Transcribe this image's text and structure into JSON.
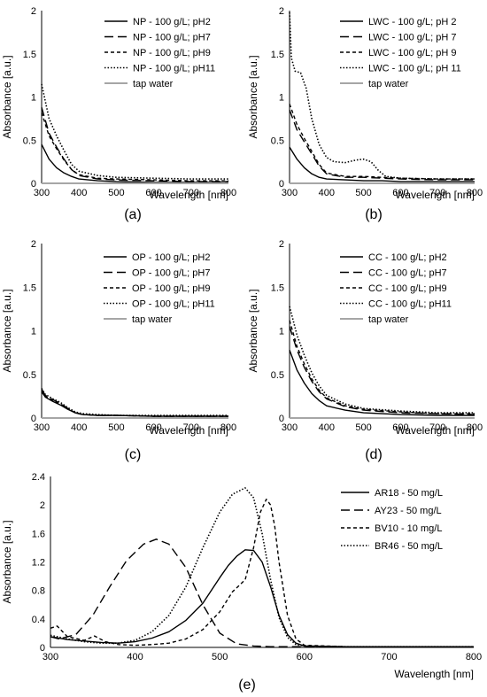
{
  "chart_data": [
    {
      "type": "line",
      "panel_label": "(a)",
      "xlabel": "Wavelength [nm]",
      "ylabel": "Absorbance [a.u.]",
      "xlim": [
        300,
        800
      ],
      "ylim": [
        0,
        2
      ],
      "xticks": [
        "300",
        "400",
        "500",
        "600",
        "700",
        "800"
      ],
      "yticks": [
        "0",
        "0.5",
        "1",
        "1.5",
        "2"
      ],
      "legend_position": "top-right",
      "series": [
        {
          "name": "NP - 100 g/L; pH2",
          "style": "solid",
          "color": "#000000",
          "x": [
            300,
            320,
            340,
            360,
            380,
            400,
            450,
            500,
            600,
            700,
            800
          ],
          "y": [
            0.45,
            0.28,
            0.18,
            0.12,
            0.08,
            0.05,
            0.03,
            0.02,
            0.01,
            0.01,
            0.01
          ]
        },
        {
          "name": "NP - 100 g/L; pH7",
          "style": "longdash",
          "color": "#000000",
          "x": [
            300,
            320,
            340,
            360,
            380,
            400,
            450,
            500,
            600,
            700,
            800
          ],
          "y": [
            0.88,
            0.58,
            0.42,
            0.28,
            0.16,
            0.09,
            0.05,
            0.04,
            0.03,
            0.02,
            0.02
          ]
        },
        {
          "name": "NP - 100 g/L; pH9",
          "style": "dash",
          "color": "#000000",
          "x": [
            300,
            320,
            340,
            360,
            380,
            400,
            450,
            500,
            600,
            700,
            800
          ],
          "y": [
            0.82,
            0.55,
            0.4,
            0.27,
            0.16,
            0.1,
            0.06,
            0.05,
            0.04,
            0.03,
            0.03
          ]
        },
        {
          "name": "NP - 100 g/L; pH11",
          "style": "dot",
          "color": "#000000",
          "x": [
            300,
            320,
            340,
            360,
            380,
            400,
            450,
            500,
            600,
            700,
            800
          ],
          "y": [
            1.15,
            0.75,
            0.55,
            0.38,
            0.22,
            0.14,
            0.09,
            0.07,
            0.06,
            0.05,
            0.05
          ]
        },
        {
          "name": "tap water",
          "style": "solid",
          "color": "#a6a6a6",
          "x": [
            300,
            800
          ],
          "y": [
            0.0,
            0.0
          ]
        }
      ]
    },
    {
      "type": "line",
      "panel_label": "(b)",
      "xlabel": "Wavelength [nm]",
      "ylabel": "Absorbance [a.u.]",
      "xlim": [
        300,
        800
      ],
      "ylim": [
        0,
        2
      ],
      "xticks": [
        "300",
        "400",
        "500",
        "600",
        "700",
        "800"
      ],
      "yticks": [
        "0",
        "0.5",
        "1",
        "1.5",
        "2"
      ],
      "legend_position": "top-right",
      "series": [
        {
          "name": "LWC - 100 g/L; pH 2",
          "style": "solid",
          "color": "#000000",
          "x": [
            300,
            320,
            340,
            360,
            380,
            400,
            450,
            500,
            550,
            600,
            700,
            800
          ],
          "y": [
            0.42,
            0.28,
            0.18,
            0.11,
            0.07,
            0.05,
            0.04,
            0.03,
            0.03,
            0.02,
            0.02,
            0.02
          ]
        },
        {
          "name": "LWC - 100 g/L; pH 7",
          "style": "longdash",
          "color": "#000000",
          "x": [
            300,
            320,
            340,
            360,
            380,
            400,
            450,
            500,
            550,
            600,
            700,
            800
          ],
          "y": [
            0.85,
            0.62,
            0.48,
            0.34,
            0.2,
            0.11,
            0.07,
            0.07,
            0.06,
            0.05,
            0.04,
            0.04
          ]
        },
        {
          "name": "LWC - 100 g/L; pH 9",
          "style": "dash",
          "color": "#000000",
          "x": [
            300,
            320,
            340,
            360,
            380,
            400,
            450,
            500,
            550,
            600,
            700,
            800
          ],
          "y": [
            0.92,
            0.68,
            0.52,
            0.37,
            0.22,
            0.12,
            0.08,
            0.08,
            0.07,
            0.06,
            0.05,
            0.05
          ]
        },
        {
          "name": "LWC - 100 g/L; pH 11",
          "style": "dot",
          "color": "#000000",
          "x": [
            300,
            305,
            315,
            330,
            345,
            360,
            380,
            400,
            420,
            450,
            480,
            500,
            520,
            540,
            560,
            600,
            700,
            800
          ],
          "y": [
            1.98,
            1.45,
            1.3,
            1.28,
            1.1,
            0.75,
            0.45,
            0.3,
            0.25,
            0.24,
            0.27,
            0.28,
            0.25,
            0.15,
            0.08,
            0.06,
            0.05,
            0.05
          ]
        },
        {
          "name": "tap water",
          "style": "solid",
          "color": "#a6a6a6",
          "x": [
            300,
            800
          ],
          "y": [
            0.0,
            0.0
          ]
        }
      ]
    },
    {
      "type": "line",
      "panel_label": "(c)",
      "xlabel": "Wavelength [nm]",
      "ylabel": "Absorbance [a.u.]",
      "xlim": [
        300,
        800
      ],
      "ylim": [
        0,
        2
      ],
      "xticks": [
        "300",
        "400",
        "500",
        "600",
        "700",
        "800"
      ],
      "yticks": [
        "0",
        "0.5",
        "1",
        "1.5",
        "2"
      ],
      "legend_position": "top-right",
      "series": [
        {
          "name": "OP - 100 g/L; pH2",
          "style": "solid",
          "color": "#000000",
          "x": [
            300,
            310,
            330,
            350,
            370,
            390,
            410,
            450,
            500,
            600,
            700,
            800
          ],
          "y": [
            0.3,
            0.24,
            0.19,
            0.15,
            0.1,
            0.06,
            0.04,
            0.03,
            0.03,
            0.02,
            0.02,
            0.02
          ]
        },
        {
          "name": "OP - 100 g/L; pH7",
          "style": "longdash",
          "color": "#000000",
          "x": [
            300,
            310,
            330,
            350,
            370,
            390,
            410,
            450,
            500,
            600,
            700,
            800
          ],
          "y": [
            0.33,
            0.26,
            0.21,
            0.17,
            0.11,
            0.06,
            0.04,
            0.03,
            0.03,
            0.02,
            0.02,
            0.02
          ]
        },
        {
          "name": "OP - 100 g/L; pH9",
          "style": "dash",
          "color": "#000000",
          "x": [
            300,
            310,
            330,
            350,
            370,
            390,
            410,
            450,
            500,
            600,
            700,
            800
          ],
          "y": [
            0.32,
            0.25,
            0.2,
            0.16,
            0.11,
            0.06,
            0.04,
            0.03,
            0.03,
            0.02,
            0.02,
            0.02
          ]
        },
        {
          "name": "OP - 100 g/L; pH11",
          "style": "dot",
          "color": "#000000",
          "x": [
            300,
            310,
            330,
            350,
            370,
            390,
            410,
            450,
            500,
            600,
            700,
            800
          ],
          "y": [
            0.34,
            0.27,
            0.22,
            0.18,
            0.12,
            0.07,
            0.05,
            0.04,
            0.03,
            0.03,
            0.03,
            0.03
          ]
        },
        {
          "name": "tap water",
          "style": "solid",
          "color": "#a6a6a6",
          "x": [
            300,
            800
          ],
          "y": [
            0.0,
            0.0
          ]
        }
      ]
    },
    {
      "type": "line",
      "panel_label": "(d)",
      "xlabel": "Wavelength [nm]",
      "ylabel": "Absorbance [a.u.]",
      "xlim": [
        300,
        800
      ],
      "ylim": [
        0,
        2
      ],
      "xticks": [
        "300",
        "400",
        "500",
        "600",
        "700",
        "800"
      ],
      "yticks": [
        "0",
        "0.5",
        "1",
        "1.5",
        "2"
      ],
      "legend_position": "top-right",
      "series": [
        {
          "name": "CC - 100 g/L; pH2",
          "style": "solid",
          "color": "#000000",
          "x": [
            300,
            320,
            340,
            360,
            380,
            400,
            450,
            500,
            600,
            700,
            800
          ],
          "y": [
            0.78,
            0.55,
            0.4,
            0.28,
            0.2,
            0.14,
            0.09,
            0.06,
            0.04,
            0.03,
            0.03
          ]
        },
        {
          "name": "CC - 100 g/L; pH7",
          "style": "longdash",
          "color": "#000000",
          "x": [
            300,
            320,
            340,
            360,
            380,
            400,
            450,
            500,
            600,
            700,
            800
          ],
          "y": [
            1.05,
            0.78,
            0.58,
            0.42,
            0.3,
            0.22,
            0.13,
            0.09,
            0.06,
            0.05,
            0.04
          ]
        },
        {
          "name": "CC - 100 g/L; pH9",
          "style": "dash",
          "color": "#000000",
          "x": [
            300,
            320,
            340,
            360,
            380,
            400,
            450,
            500,
            600,
            700,
            800
          ],
          "y": [
            1.12,
            0.82,
            0.62,
            0.45,
            0.32,
            0.23,
            0.14,
            0.1,
            0.07,
            0.05,
            0.05
          ]
        },
        {
          "name": "CC - 100 g/L; pH11",
          "style": "dot",
          "color": "#000000",
          "x": [
            300,
            320,
            340,
            360,
            380,
            400,
            450,
            500,
            600,
            700,
            800
          ],
          "y": [
            1.28,
            0.95,
            0.72,
            0.52,
            0.37,
            0.26,
            0.16,
            0.11,
            0.08,
            0.06,
            0.06
          ]
        },
        {
          "name": "tap water",
          "style": "solid",
          "color": "#a6a6a6",
          "x": [
            300,
            800
          ],
          "y": [
            0.0,
            0.0
          ]
        }
      ]
    },
    {
      "type": "line",
      "panel_label": "(e)",
      "xlabel": "Wavelength [nm]",
      "ylabel": "Absorbance [a.u.]",
      "xlim": [
        300,
        800
      ],
      "ylim": [
        0,
        2.4
      ],
      "xticks": [
        "300",
        "400",
        "500",
        "600",
        "700",
        "800"
      ],
      "yticks": [
        "0",
        "0.4",
        "0.8",
        "1.2",
        "1.6",
        "2",
        "2.4"
      ],
      "legend_position": "top-right",
      "series": [
        {
          "name": "AR18 - 50 mg/L",
          "style": "solid",
          "color": "#000000",
          "x": [
            300,
            320,
            340,
            360,
            380,
            400,
            420,
            440,
            460,
            480,
            500,
            510,
            520,
            530,
            540,
            550,
            560,
            570,
            580,
            590,
            600,
            650,
            700,
            800
          ],
          "y": [
            0.15,
            0.11,
            0.09,
            0.07,
            0.06,
            0.08,
            0.13,
            0.22,
            0.38,
            0.62,
            0.98,
            1.15,
            1.28,
            1.37,
            1.36,
            1.2,
            0.85,
            0.45,
            0.18,
            0.06,
            0.02,
            0.01,
            0.01,
            0.01
          ]
        },
        {
          "name": "AY23 - 50 mg/L",
          "style": "longdash",
          "color": "#000000",
          "x": [
            300,
            310,
            330,
            350,
            370,
            390,
            410,
            425,
            440,
            460,
            480,
            500,
            520,
            540,
            560,
            600,
            700,
            800
          ],
          "y": [
            0.15,
            0.12,
            0.18,
            0.45,
            0.85,
            1.22,
            1.45,
            1.52,
            1.45,
            1.12,
            0.6,
            0.2,
            0.05,
            0.02,
            0.01,
            0.01,
            0.01,
            0.01
          ]
        },
        {
          "name": "BV10 - 10 mg/L",
          "style": "dash",
          "color": "#000000",
          "x": [
            300,
            308,
            320,
            340,
            352,
            365,
            380,
            400,
            420,
            440,
            460,
            480,
            500,
            515,
            530,
            540,
            548,
            555,
            560,
            565,
            570,
            580,
            590,
            600,
            650,
            700,
            800
          ],
          "y": [
            0.27,
            0.3,
            0.15,
            0.1,
            0.16,
            0.08,
            0.04,
            0.03,
            0.04,
            0.06,
            0.12,
            0.25,
            0.5,
            0.78,
            0.95,
            1.4,
            1.9,
            2.08,
            2.0,
            1.7,
            1.2,
            0.45,
            0.12,
            0.03,
            0.01,
            0.01,
            0.01
          ]
        },
        {
          "name": "BR46 - 50 mg/L",
          "style": "dot",
          "color": "#000000",
          "x": [
            300,
            320,
            340,
            360,
            380,
            400,
            420,
            440,
            460,
            480,
            500,
            515,
            530,
            540,
            550,
            560,
            570,
            580,
            590,
            600,
            650,
            700,
            800
          ],
          "y": [
            0.17,
            0.12,
            0.08,
            0.06,
            0.06,
            0.1,
            0.22,
            0.45,
            0.85,
            1.4,
            1.9,
            2.15,
            2.24,
            2.1,
            1.6,
            0.95,
            0.42,
            0.14,
            0.04,
            0.02,
            0.01,
            0.01,
            0.01
          ]
        }
      ]
    }
  ]
}
